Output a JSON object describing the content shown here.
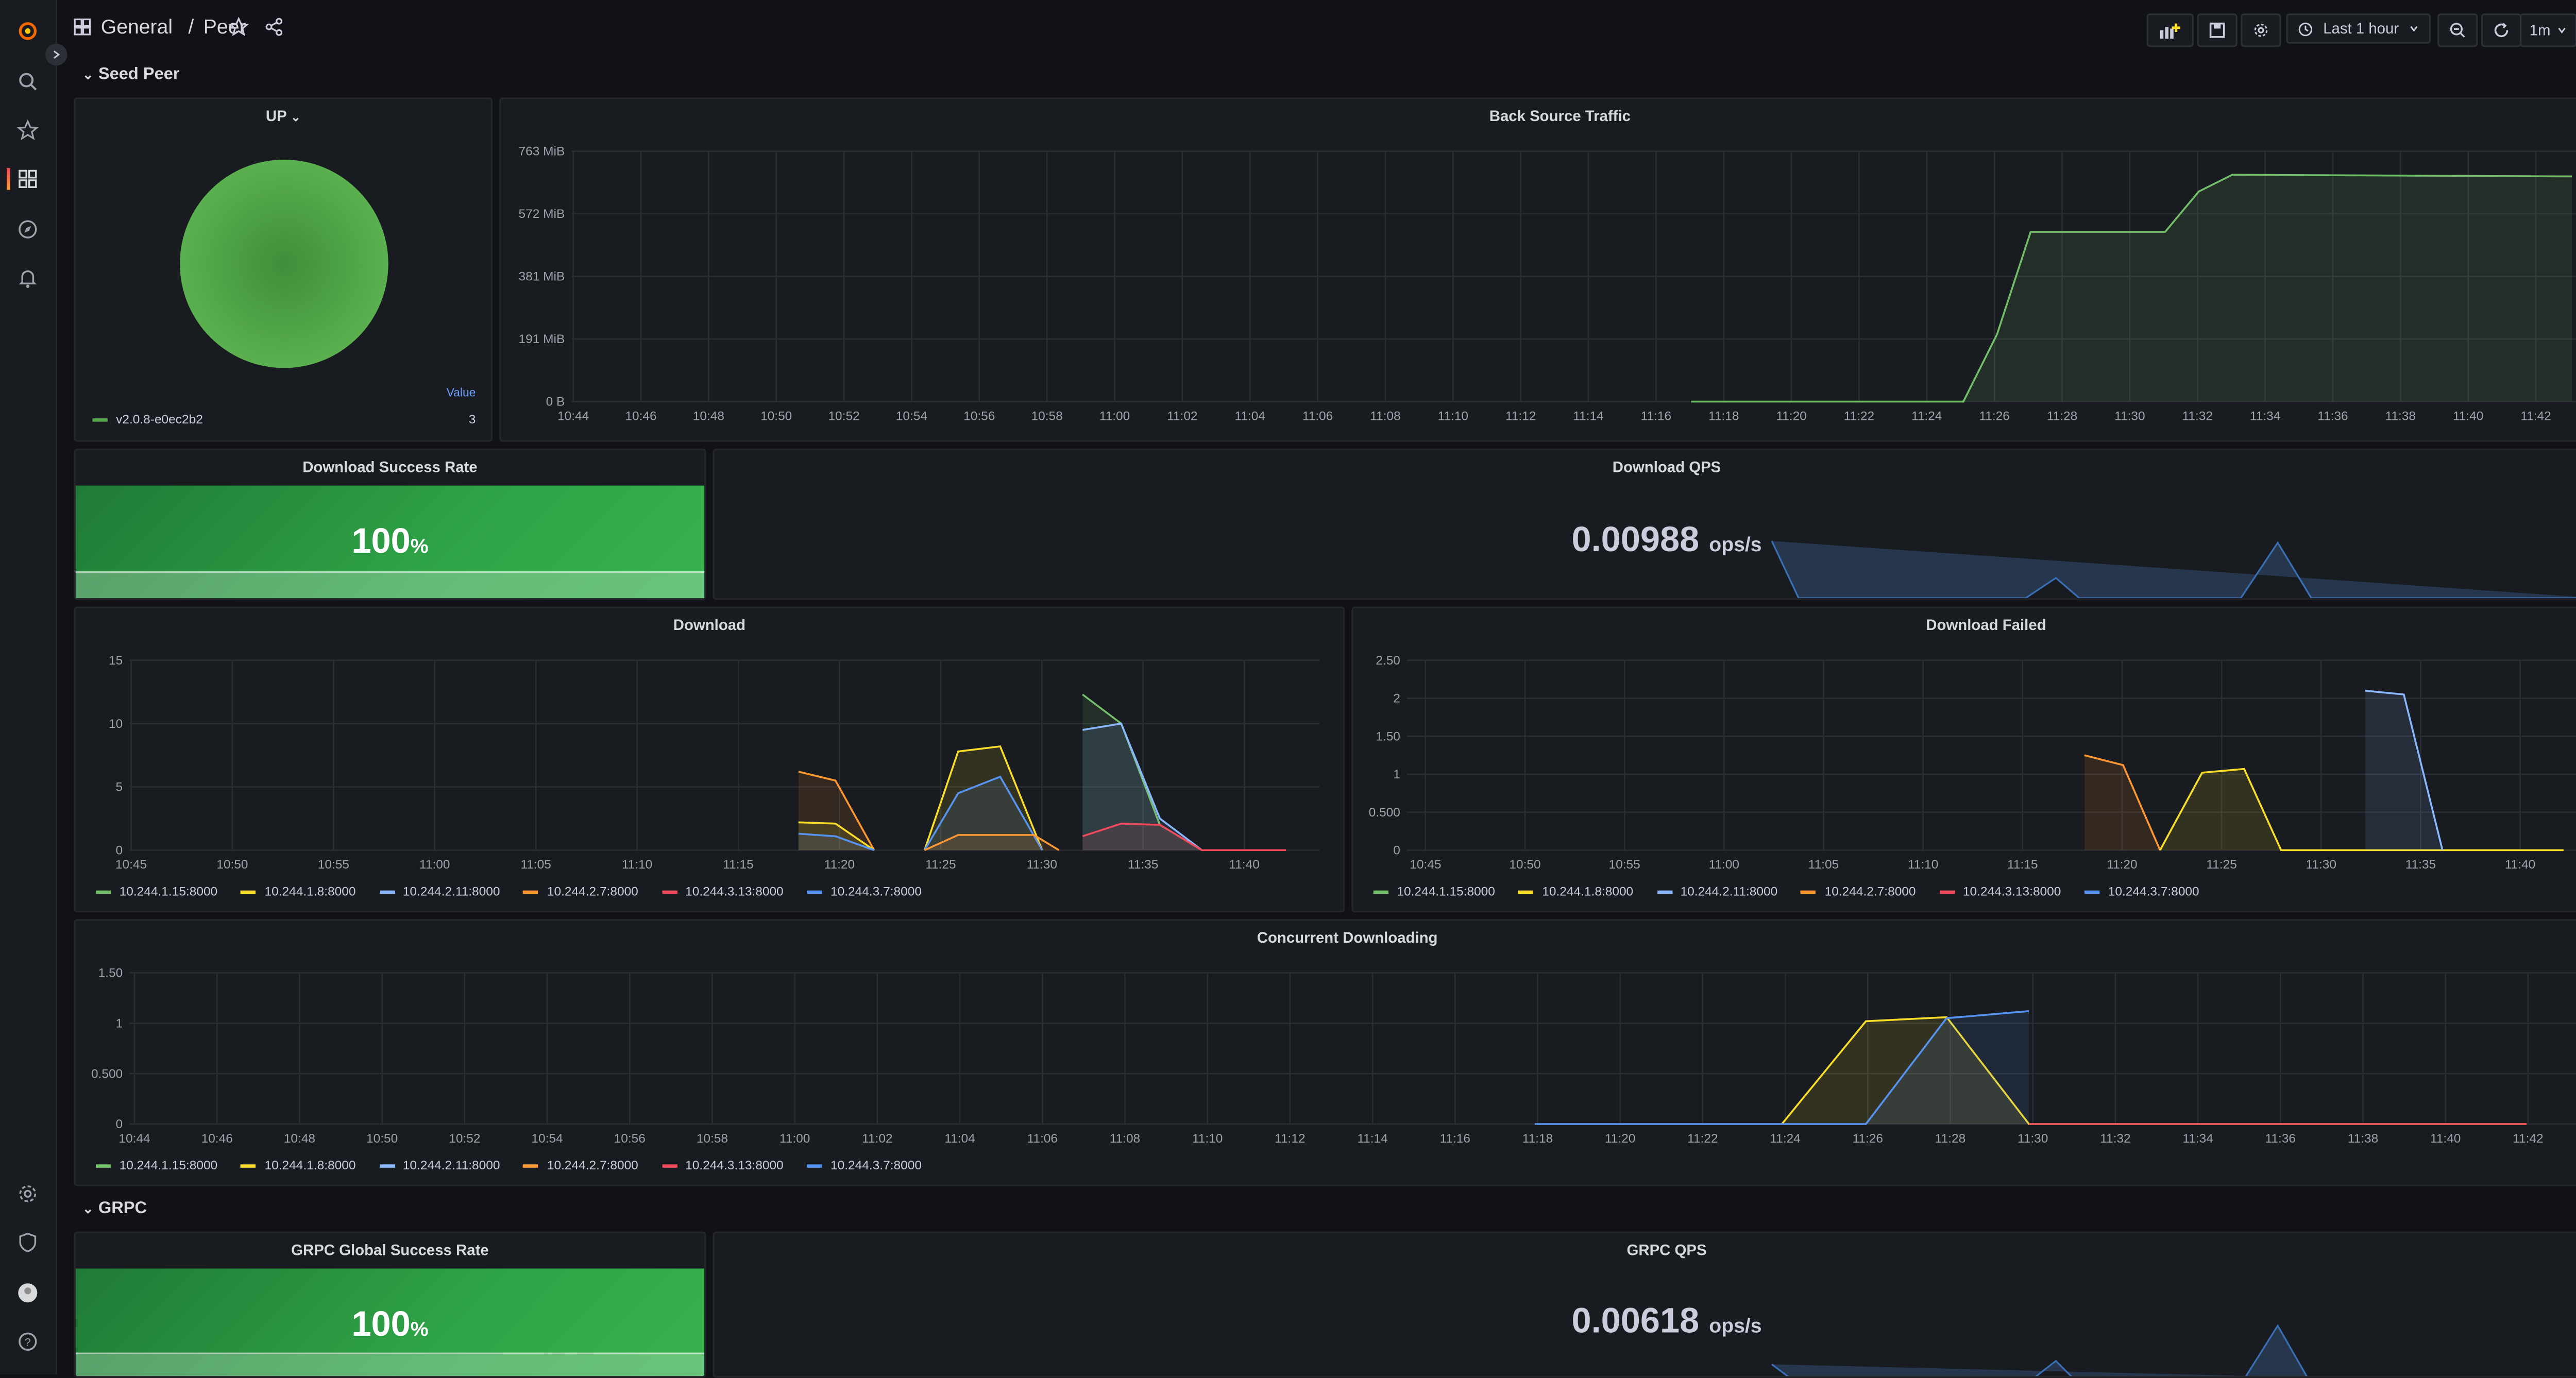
{
  "nav": {
    "items": [
      "grafana-logo-icon",
      "search-icon",
      "starred-icon",
      "dashboards-icon",
      "explore-icon",
      "alerting-icon"
    ],
    "bottom": [
      "settings-icon",
      "shield-icon",
      "avatar",
      "help-icon"
    ]
  },
  "header": {
    "folder": "General",
    "separator": "/",
    "title": "Peer",
    "time_range": "Last 1 hour",
    "refresh": "1m"
  },
  "rows": {
    "seed_peer": "Seed Peer",
    "grpc": "GRPC"
  },
  "up_panel": {
    "title": "UP",
    "legend_header": "Value",
    "legend_name": "v2.0.8-e0ec2b2",
    "legend_value": "3",
    "color": "#56a64b"
  },
  "back_source": {
    "title": "Back Source Traffic",
    "y_ticks": [
      "763 MiB",
      "572 MiB",
      "381 MiB",
      "191 MiB",
      "0 B"
    ],
    "x_ticks": [
      "10:44",
      "10:46",
      "10:48",
      "10:50",
      "10:52",
      "10:54",
      "10:56",
      "10:58",
      "11:00",
      "11:02",
      "11:04",
      "11:06",
      "11:08",
      "11:10",
      "11:12",
      "11:14",
      "11:16",
      "11:18",
      "11:20",
      "11:22",
      "11:24",
      "11:26",
      "11:28",
      "11:30",
      "11:32",
      "11:34",
      "11:36",
      "11:38",
      "11:40",
      "11:42"
    ]
  },
  "download_success": {
    "title": "Download Success Rate",
    "value": "100",
    "unit": "%",
    "fill": 1.0
  },
  "download_qps": {
    "title": "Download QPS",
    "value": "0.00988",
    "unit": "ops/s"
  },
  "download": {
    "title": "Download",
    "y_ticks": [
      "15",
      "10",
      "5",
      "0"
    ],
    "x_ticks": [
      "10:45",
      "10:50",
      "10:55",
      "11:00",
      "11:05",
      "11:10",
      "11:15",
      "11:20",
      "11:25",
      "11:30",
      "11:35",
      "11:40"
    ]
  },
  "download_failed": {
    "title": "Download Failed",
    "y_ticks": [
      "2.50",
      "2",
      "1.50",
      "1",
      "0.500",
      "0"
    ],
    "x_ticks": [
      "10:45",
      "10:50",
      "10:55",
      "11:00",
      "11:05",
      "11:10",
      "11:15",
      "11:20",
      "11:25",
      "11:30",
      "11:35",
      "11:40"
    ]
  },
  "concurrent": {
    "title": "Concurrent Downloading",
    "y_ticks": [
      "1.50",
      "1",
      "0.500",
      "0"
    ],
    "x_ticks": [
      "10:44",
      "10:46",
      "10:48",
      "10:50",
      "10:52",
      "10:54",
      "10:56",
      "10:58",
      "11:00",
      "11:02",
      "11:04",
      "11:06",
      "11:08",
      "11:10",
      "11:12",
      "11:14",
      "11:16",
      "11:18",
      "11:20",
      "11:22",
      "11:24",
      "11:26",
      "11:28",
      "11:30",
      "11:32",
      "11:34",
      "11:36",
      "11:38",
      "11:40",
      "11:42"
    ]
  },
  "grpc_success": {
    "title": "GRPC Global Success Rate",
    "value": "100",
    "unit": "%",
    "fill": 1.0
  },
  "grpc_qps": {
    "title": "GRPC QPS",
    "value": "0.00618",
    "unit": "ops/s"
  },
  "series": [
    {
      "name": "10.244.1.15:8000",
      "color": "#73bf69"
    },
    {
      "name": "10.244.1.8:8000",
      "color": "#fade2a"
    },
    {
      "name": "10.244.2.11:8000",
      "color": "#8ab8ff"
    },
    {
      "name": "10.244.2.7:8000",
      "color": "#ff9830"
    },
    {
      "name": "10.244.3.13:8000",
      "color": "#f2495c"
    },
    {
      "name": "10.244.3.7:8000",
      "color": "#5794f2"
    }
  ]
}
